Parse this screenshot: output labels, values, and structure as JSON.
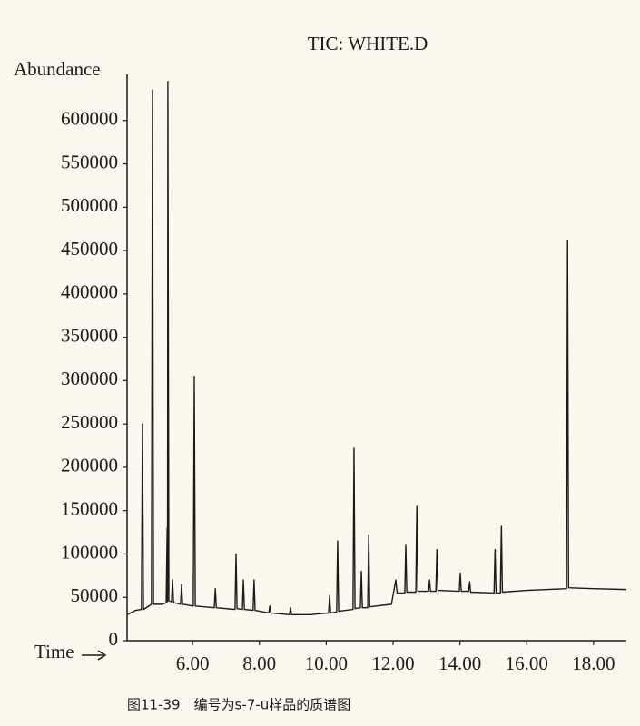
{
  "chart_data": {
    "type": "line",
    "title": "TIC: WHITE.D",
    "y_label": "Abundance",
    "x_label": "Time",
    "caption": "图11-39　编号为s-7-u样品的质谱图",
    "xlim": [
      4.04,
      18.98
    ],
    "ylim": [
      0,
      650000
    ],
    "xticks": [
      {
        "value": 6,
        "label": "6.00"
      },
      {
        "value": 8,
        "label": "8.00"
      },
      {
        "value": 10,
        "label": "10.00"
      },
      {
        "value": 12,
        "label": "12.00"
      },
      {
        "value": 14,
        "label": "14.00"
      },
      {
        "value": 16,
        "label": "16.00"
      },
      {
        "value": 18,
        "label": "18.00"
      }
    ],
    "yticks": [
      0,
      50000,
      100000,
      150000,
      200000,
      250000,
      300000,
      350000,
      400000,
      450000,
      500000,
      550000,
      600000
    ],
    "series": [
      {
        "color": "#1a1a1a",
        "x": [
          4.04,
          4.3,
          4.47,
          4.5,
          4.53,
          4.77,
          4.8,
          4.83,
          5.1,
          5.21,
          5.24,
          5.25,
          5.26,
          5.29,
          5.37,
          5.4,
          5.43,
          5.64,
          5.67,
          5.7,
          6.02,
          6.05,
          6.08,
          6.65,
          6.68,
          6.71,
          7.27,
          7.3,
          7.33,
          7.49,
          7.52,
          7.55,
          7.81,
          7.84,
          7.87,
          8.28,
          8.31,
          8.34,
          8.9,
          8.93,
          8.96,
          9.5,
          10.07,
          10.1,
          10.13,
          10.31,
          10.34,
          10.37,
          10.8,
          10.83,
          10.86,
          11.02,
          11.05,
          11.08,
          11.24,
          11.27,
          11.3,
          11.95,
          12.08,
          12.12,
          12.35,
          12.38,
          12.41,
          12.68,
          12.71,
          12.74,
          13.06,
          13.09,
          13.12,
          13.28,
          13.31,
          13.34,
          13.98,
          14.01,
          14.04,
          14.26,
          14.29,
          14.32,
          15.02,
          15.05,
          15.08,
          15.21,
          15.24,
          15.27,
          16.0,
          17.19,
          17.22,
          17.25,
          18.0,
          18.98
        ],
        "values": [
          30000,
          35000,
          36000,
          250000,
          36000,
          42000,
          635000,
          42000,
          42000,
          44000,
          130000,
          45000,
          645000,
          46000,
          45000,
          70000,
          44000,
          42000,
          65000,
          42000,
          40000,
          305000,
          40000,
          38000,
          60000,
          38000,
          36000,
          100000,
          37000,
          36000,
          70000,
          36000,
          35000,
          70000,
          35000,
          32000,
          40000,
          32000,
          30000,
          38000,
          30000,
          30000,
          32000,
          52000,
          32000,
          33000,
          115000,
          34000,
          36000,
          222000,
          37000,
          38000,
          80000,
          38000,
          38000,
          122000,
          39000,
          42000,
          70000,
          55000,
          55000,
          110000,
          56000,
          56000,
          155000,
          57000,
          57000,
          70000,
          57000,
          57000,
          105000,
          58000,
          57000,
          78000,
          57000,
          57000,
          68000,
          56000,
          55000,
          105000,
          55000,
          55000,
          132000,
          56000,
          58000,
          60000,
          462000,
          61000,
          60000,
          59000
        ]
      }
    ]
  }
}
